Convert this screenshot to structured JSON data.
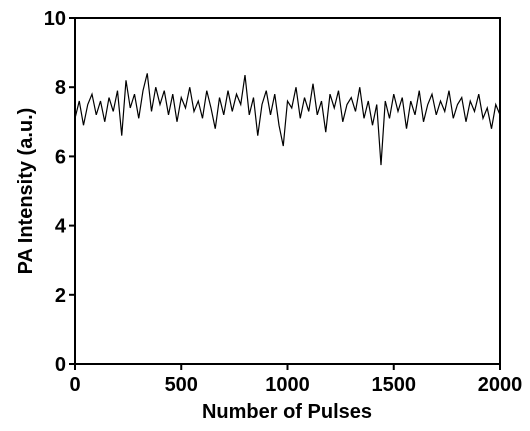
{
  "chart_data": {
    "type": "line",
    "xlabel": "Number of Pulses",
    "ylabel": "PA Intensity (a.u.)",
    "xlim": [
      0,
      2000
    ],
    "xticks": [
      0,
      500,
      1000,
      1500,
      2000
    ],
    "ylim": [
      0,
      10
    ],
    "yticks": [
      0,
      2,
      4,
      6,
      8,
      10
    ],
    "grid": false,
    "series": [
      {
        "color": "#000000",
        "x": [
          0,
          20,
          40,
          60,
          80,
          100,
          120,
          140,
          160,
          180,
          200,
          220,
          240,
          260,
          280,
          300,
          320,
          340,
          360,
          380,
          400,
          420,
          440,
          460,
          480,
          500,
          520,
          540,
          560,
          580,
          600,
          620,
          640,
          660,
          680,
          700,
          720,
          740,
          760,
          780,
          800,
          820,
          840,
          860,
          880,
          900,
          920,
          940,
          960,
          980,
          1000,
          1020,
          1040,
          1060,
          1080,
          1100,
          1120,
          1140,
          1160,
          1180,
          1200,
          1220,
          1240,
          1260,
          1280,
          1300,
          1320,
          1340,
          1360,
          1380,
          1400,
          1420,
          1440,
          1460,
          1480,
          1500,
          1520,
          1540,
          1560,
          1580,
          1600,
          1620,
          1640,
          1660,
          1680,
          1700,
          1720,
          1740,
          1760,
          1780,
          1800,
          1820,
          1840,
          1860,
          1880,
          1900,
          1920,
          1940,
          1960,
          1980,
          2000
        ],
        "values": [
          7.1,
          7.6,
          6.9,
          7.5,
          7.8,
          7.2,
          7.6,
          7.0,
          7.7,
          7.3,
          7.9,
          6.6,
          8.2,
          7.4,
          7.8,
          7.1,
          7.9,
          8.4,
          7.3,
          8.0,
          7.5,
          7.9,
          7.2,
          7.8,
          7.0,
          7.7,
          7.4,
          8.0,
          7.3,
          7.6,
          7.1,
          7.9,
          7.4,
          6.8,
          7.7,
          7.2,
          7.9,
          7.3,
          7.8,
          7.5,
          8.35,
          7.2,
          7.7,
          6.6,
          7.5,
          7.9,
          7.2,
          7.8,
          6.9,
          6.3,
          7.6,
          7.4,
          8.0,
          7.1,
          7.7,
          7.3,
          8.1,
          7.2,
          7.6,
          6.7,
          7.8,
          7.4,
          7.9,
          7.0,
          7.5,
          7.7,
          7.3,
          8.0,
          7.1,
          7.6,
          6.9,
          7.5,
          5.75,
          7.6,
          7.1,
          7.8,
          7.3,
          7.7,
          6.8,
          7.6,
          7.2,
          7.9,
          7.0,
          7.5,
          7.8,
          7.2,
          7.6,
          7.3,
          7.9,
          7.1,
          7.5,
          7.7,
          7.0,
          7.6,
          7.3,
          7.8,
          7.1,
          7.4,
          6.8,
          7.5,
          7.2
        ]
      }
    ]
  }
}
